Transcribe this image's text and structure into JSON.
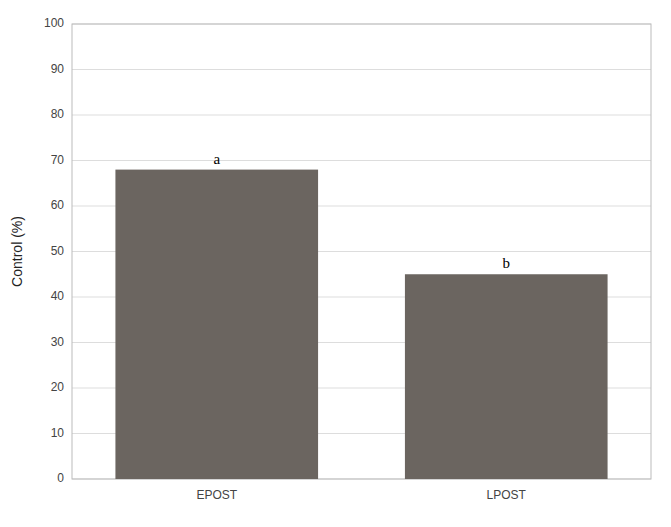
{
  "chart_data": {
    "type": "bar",
    "categories": [
      "EPOST",
      "LPOST"
    ],
    "values": [
      68,
      45
    ],
    "color": "#6b6560",
    "ylabel": "Control (%)",
    "ylim": [
      0,
      100
    ],
    "yticks": [
      0,
      10,
      20,
      30,
      40,
      50,
      60,
      70,
      80,
      90,
      100
    ],
    "grid": true,
    "annotations": [
      "a",
      "b"
    ]
  }
}
